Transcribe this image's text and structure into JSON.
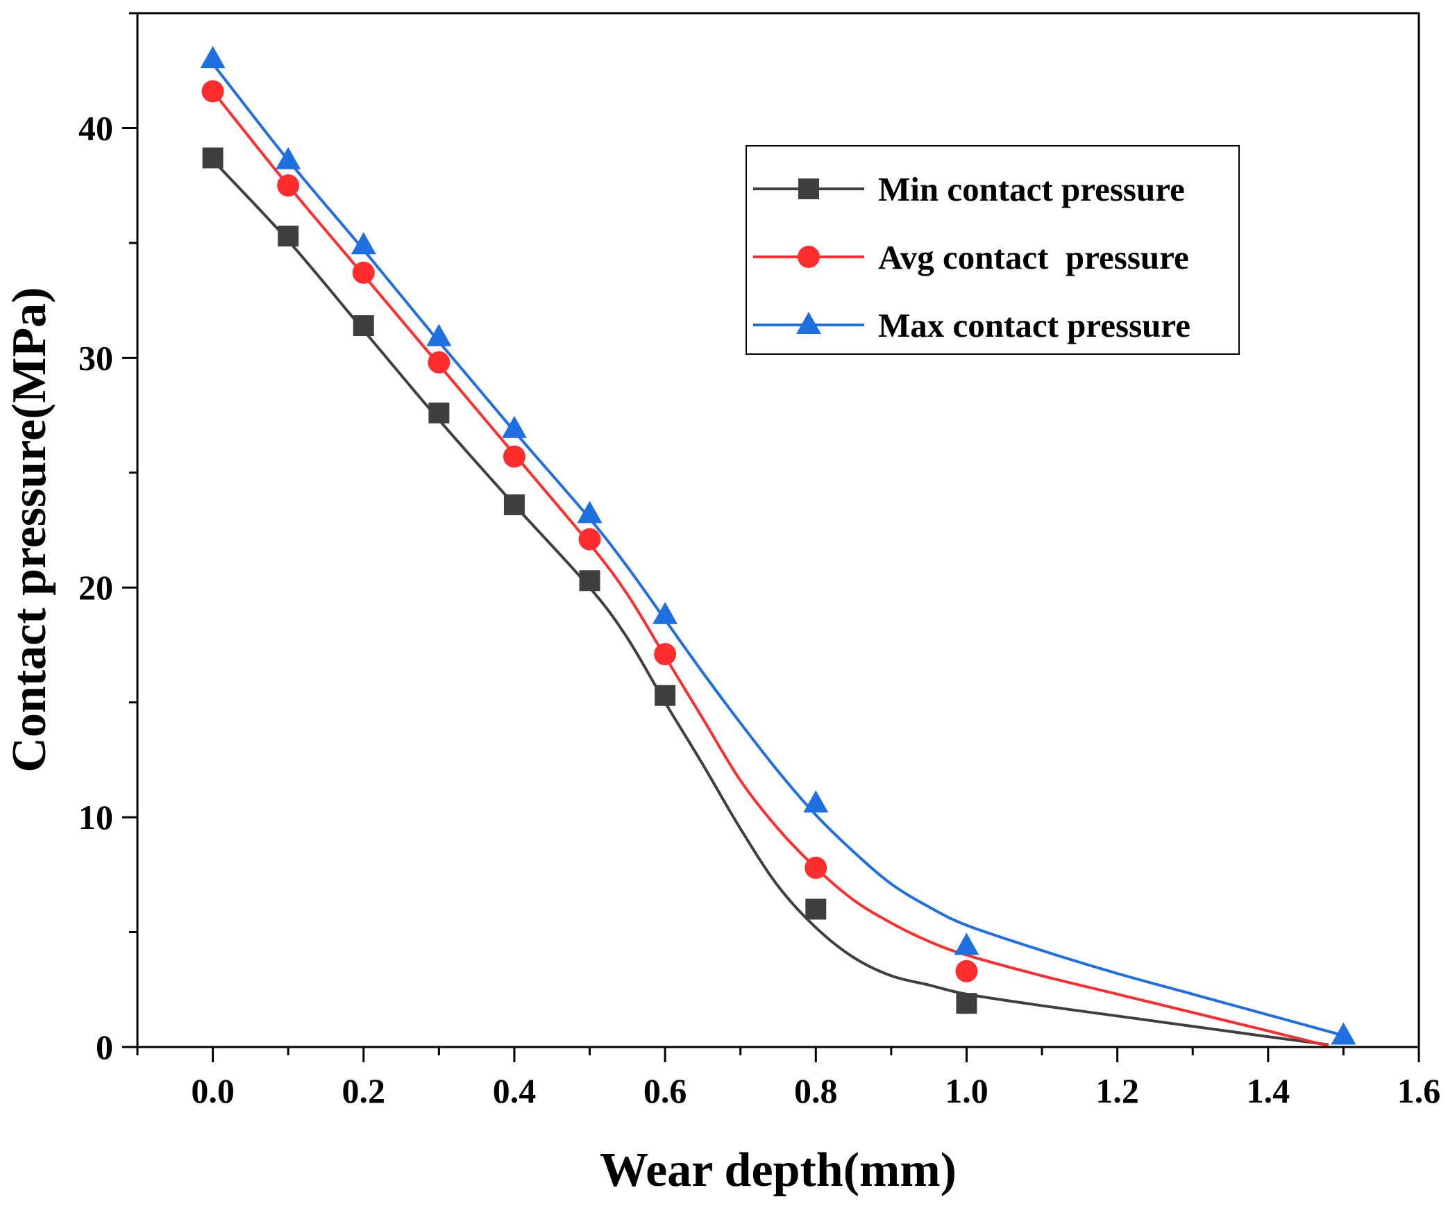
{
  "chart_data": {
    "type": "line",
    "title": "",
    "xlabel": "Wear depth(mm)",
    "ylabel": "Contact pressure(MPa)",
    "xlim": [
      -0.1,
      1.6
    ],
    "ylim": [
      0,
      45
    ],
    "xticks": [
      0.0,
      0.2,
      0.4,
      0.6,
      0.8,
      1.0,
      1.2,
      1.4,
      1.6
    ],
    "xtick_labels": [
      "0.0",
      "0.2",
      "0.4",
      "0.6",
      "0.8",
      "1.0",
      "1.2",
      "1.4",
      "1.6"
    ],
    "yticks": [
      0,
      10,
      20,
      30,
      40
    ],
    "ytick_labels": [
      "0",
      "10",
      "20",
      "30",
      "40"
    ],
    "legend_position": "top-right",
    "series": [
      {
        "name": "Min contact pressure",
        "marker": "square",
        "color": "#3f3f3f",
        "x": [
          0.0,
          0.1,
          0.2,
          0.3,
          0.4,
          0.5,
          0.6,
          0.8,
          1.0
        ],
        "y": [
          38.7,
          35.3,
          31.4,
          27.6,
          23.6,
          20.3,
          15.3,
          6.0,
          1.9
        ],
        "fit_x": [
          0.0,
          0.1,
          0.2,
          0.3,
          0.4,
          0.5,
          0.55,
          0.6,
          0.65,
          0.7,
          0.75,
          0.8,
          0.85,
          0.9,
          0.95,
          1.0,
          1.1,
          1.2,
          1.3,
          1.4,
          1.48
        ],
        "fit_y": [
          38.6,
          35.1,
          31.2,
          27.3,
          23.6,
          20.0,
          17.8,
          15.0,
          12.3,
          9.5,
          7.0,
          5.2,
          3.9,
          3.1,
          2.7,
          2.3,
          1.8,
          1.35,
          0.9,
          0.45,
          0.1
        ]
      },
      {
        "name": "Avg contact  pressure",
        "marker": "circle",
        "color": "#ff2d2d",
        "x": [
          0.0,
          0.1,
          0.2,
          0.3,
          0.4,
          0.5,
          0.6,
          0.8,
          1.0
        ],
        "y": [
          41.6,
          37.5,
          33.7,
          29.8,
          25.7,
          22.1,
          17.1,
          7.8,
          3.3
        ],
        "fit_x": [
          0.0,
          0.1,
          0.2,
          0.3,
          0.4,
          0.5,
          0.55,
          0.6,
          0.65,
          0.7,
          0.75,
          0.8,
          0.85,
          0.9,
          0.95,
          1.0,
          1.1,
          1.2,
          1.3,
          1.4,
          1.48
        ],
        "fit_y": [
          41.6,
          37.5,
          33.6,
          29.7,
          25.8,
          21.9,
          19.7,
          17.0,
          14.3,
          11.6,
          9.5,
          7.8,
          6.4,
          5.4,
          4.6,
          4.0,
          3.1,
          2.3,
          1.5,
          0.7,
          0.05
        ]
      },
      {
        "name": "Max contact pressure",
        "marker": "triangle",
        "color": "#1f6fe0",
        "x": [
          0.0,
          0.1,
          0.2,
          0.3,
          0.4,
          0.5,
          0.6,
          0.8,
          1.0,
          1.5
        ],
        "y": [
          43.0,
          38.6,
          34.9,
          30.9,
          26.9,
          23.2,
          18.8,
          10.6,
          4.4,
          0.5
        ],
        "fit_x": [
          0.0,
          0.1,
          0.2,
          0.3,
          0.4,
          0.5,
          0.55,
          0.6,
          0.65,
          0.7,
          0.75,
          0.8,
          0.85,
          0.9,
          0.95,
          1.0,
          1.1,
          1.2,
          1.3,
          1.4,
          1.5
        ],
        "fit_y": [
          42.8,
          38.6,
          34.7,
          30.7,
          26.8,
          23.0,
          20.9,
          18.6,
          16.3,
          14.1,
          12.0,
          10.1,
          8.5,
          7.1,
          6.1,
          5.3,
          4.2,
          3.2,
          2.3,
          1.4,
          0.5
        ]
      }
    ]
  }
}
